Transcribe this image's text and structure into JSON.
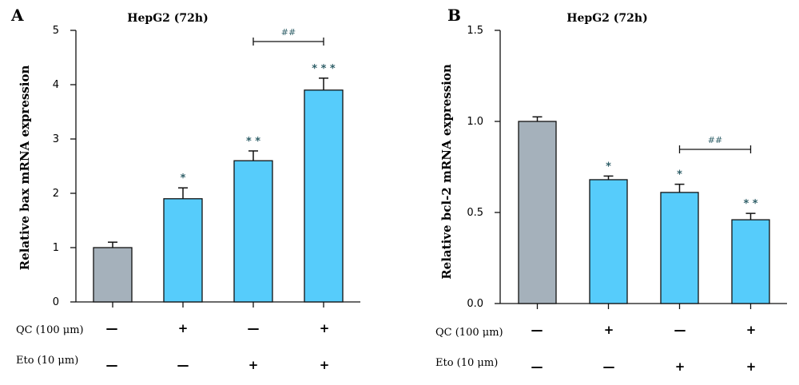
{
  "panels": [
    {
      "letter": "A",
      "title": "HepG2 (72h)",
      "row_labels": [
        "QC (100 μm)",
        "Eto (10 μm)"
      ]
    },
    {
      "letter": "B",
      "title": "HepG2 (72h)",
      "row_labels": [
        "QC (100 μm)",
        "Eto (10 μm)"
      ]
    }
  ],
  "colors": {
    "control": "#a5b1bb",
    "treated": "#56ccfb",
    "significance": "#2f5f68"
  },
  "chart_data": [
    {
      "type": "bar",
      "title": "HepG2 (72h)",
      "ylabel": "Relative bax mRNA expression",
      "ylim": [
        0,
        5
      ],
      "yticks": [
        "0",
        "1",
        "2",
        "3",
        "4",
        "5"
      ],
      "values": [
        1.0,
        1.9,
        2.6,
        3.9
      ],
      "errors": [
        0.1,
        0.2,
        0.18,
        0.22
      ],
      "significance": [
        "",
        "*",
        "* *",
        "* * *"
      ],
      "conditions": {
        "QC (100 μm)": [
          "—",
          "+",
          "—",
          "+"
        ],
        "Eto (10 μm)": [
          "—",
          "—",
          "+",
          "+"
        ]
      },
      "comparison": {
        "from_bar": 3,
        "to_bar": 4,
        "label": "##"
      }
    },
    {
      "type": "bar",
      "title": "HepG2 (72h)",
      "ylabel": "Relative bcl-2 mRNA expression",
      "ylim": [
        0,
        1.5
      ],
      "yticks": [
        "0.0",
        "0.5",
        "1.0",
        "1.5"
      ],
      "values": [
        1.0,
        0.68,
        0.61,
        0.46
      ],
      "errors": [
        0.025,
        0.02,
        0.045,
        0.035
      ],
      "significance": [
        "",
        "*",
        "*",
        "* *"
      ],
      "conditions": {
        "QC (100 μm)": [
          "—",
          "+",
          "—",
          "+"
        ],
        "Eto (10 μm)": [
          "—",
          "—",
          "+",
          "+"
        ]
      },
      "comparison": {
        "from_bar": 3,
        "to_bar": 4,
        "label": "##"
      }
    }
  ]
}
